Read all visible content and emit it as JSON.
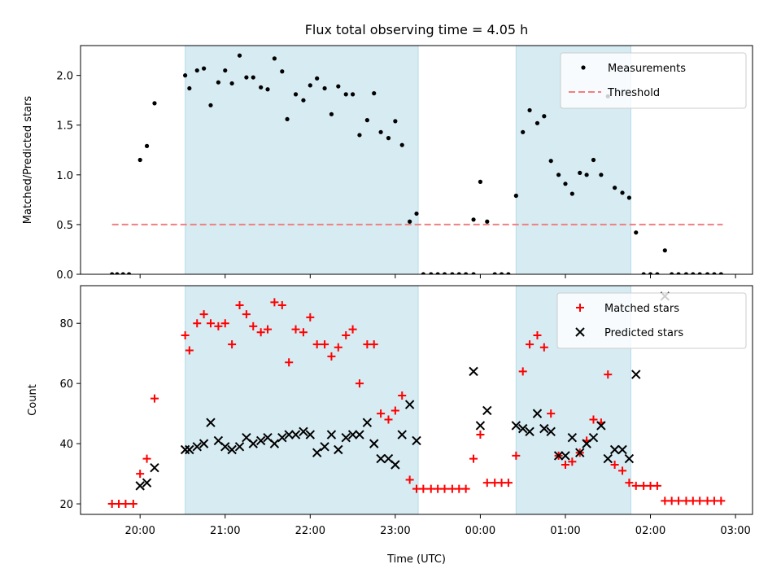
{
  "figure": {
    "title": "Flux total observing time = 4.05 h",
    "xlabel": "Time (UTC)",
    "xtick_labels": [
      "20:00",
      "21:00",
      "22:00",
      "23:00",
      "00:00",
      "01:00",
      "02:00",
      "03:00"
    ]
  },
  "chart_data": [
    {
      "type": "scatter",
      "ylabel": "Matched/Predicted stars",
      "ylim": [
        0,
        2.3
      ],
      "yticks": [
        0.0,
        0.5,
        1.0,
        1.5,
        2.0
      ],
      "ytick_labels": [
        "0.0",
        "0.5",
        "1.0",
        "1.5",
        "2.0"
      ],
      "x_unit": "hours since 20:00 UTC",
      "xlim": [
        -0.7,
        7.2
      ],
      "legend": {
        "position": "top-right",
        "entries": [
          "Measurements",
          "Threshold"
        ]
      },
      "shaded_regions": [
        {
          "x": [
            0.53,
            3.27
          ],
          "color": "#add8e6"
        },
        {
          "x": [
            4.42,
            5.77
          ],
          "color": "#add8e6"
        }
      ],
      "threshold": {
        "name": "Threshold",
        "y": 0.5,
        "x": [
          -0.33,
          6.85
        ],
        "color": "#f08080"
      },
      "series": [
        {
          "name": "Measurements",
          "color": "#000000",
          "points": [
            [
              -0.33,
              0
            ],
            [
              -0.27,
              0
            ],
            [
              -0.2,
              0
            ],
            [
              -0.13,
              0
            ],
            [
              0.0,
              1.15
            ],
            [
              0.08,
              1.29
            ],
            [
              0.17,
              1.72
            ],
            [
              0.53,
              2.0
            ],
            [
              0.58,
              1.87
            ],
            [
              0.67,
              2.05
            ],
            [
              0.75,
              2.07
            ],
            [
              0.83,
              1.7
            ],
            [
              0.92,
              1.93
            ],
            [
              1.0,
              2.05
            ],
            [
              1.08,
              1.92
            ],
            [
              1.17,
              2.2
            ],
            [
              1.25,
              1.98
            ],
            [
              1.33,
              1.98
            ],
            [
              1.42,
              1.88
            ],
            [
              1.5,
              1.86
            ],
            [
              1.58,
              2.17
            ],
            [
              1.67,
              2.04
            ],
            [
              1.73,
              1.56
            ],
            [
              1.83,
              1.81
            ],
            [
              1.92,
              1.75
            ],
            [
              2.0,
              1.9
            ],
            [
              2.08,
              1.97
            ],
            [
              2.17,
              1.87
            ],
            [
              2.25,
              1.61
            ],
            [
              2.33,
              1.89
            ],
            [
              2.42,
              1.81
            ],
            [
              2.5,
              1.81
            ],
            [
              2.58,
              1.4
            ],
            [
              2.67,
              1.55
            ],
            [
              2.75,
              1.82
            ],
            [
              2.83,
              1.43
            ],
            [
              2.92,
              1.37
            ],
            [
              3.0,
              1.54
            ],
            [
              3.08,
              1.3
            ],
            [
              3.17,
              0.53
            ],
            [
              3.25,
              0.61
            ],
            [
              3.33,
              0
            ],
            [
              3.42,
              0
            ],
            [
              3.5,
              0
            ],
            [
              3.58,
              0
            ],
            [
              3.67,
              0
            ],
            [
              3.75,
              0
            ],
            [
              3.83,
              0
            ],
            [
              3.92,
              0
            ],
            [
              3.92,
              0.55
            ],
            [
              4.0,
              0.93
            ],
            [
              4.08,
              0.53
            ],
            [
              4.17,
              0
            ],
            [
              4.25,
              0
            ],
            [
              4.33,
              0
            ],
            [
              4.42,
              0.79
            ],
            [
              4.5,
              1.43
            ],
            [
              4.58,
              1.65
            ],
            [
              4.67,
              1.52
            ],
            [
              4.75,
              1.59
            ],
            [
              4.83,
              1.14
            ],
            [
              4.92,
              1.0
            ],
            [
              5.0,
              0.91
            ],
            [
              5.08,
              0.81
            ],
            [
              5.17,
              1.02
            ],
            [
              5.25,
              1.0
            ],
            [
              5.33,
              1.15
            ],
            [
              5.42,
              1.0
            ],
            [
              5.5,
              1.79
            ],
            [
              5.58,
              0.87
            ],
            [
              5.67,
              0.82
            ],
            [
              5.75,
              0.77
            ],
            [
              5.83,
              0.42
            ],
            [
              5.92,
              0
            ],
            [
              6.0,
              0
            ],
            [
              6.08,
              0
            ],
            [
              6.17,
              0.24
            ],
            [
              6.25,
              0
            ],
            [
              6.33,
              0
            ],
            [
              6.42,
              0
            ],
            [
              6.5,
              0
            ],
            [
              6.58,
              0
            ],
            [
              6.67,
              0
            ],
            [
              6.75,
              0
            ],
            [
              6.83,
              0
            ]
          ]
        }
      ]
    },
    {
      "type": "scatter",
      "ylabel": "Count",
      "ylim": [
        16.5,
        92.5
      ],
      "yticks": [
        20,
        40,
        60,
        80
      ],
      "ytick_labels": [
        "20",
        "40",
        "60",
        "80"
      ],
      "x_unit": "hours since 20:00 UTC",
      "xlim": [
        -0.7,
        7.2
      ],
      "legend": {
        "position": "top-right",
        "entries": [
          "Matched stars",
          "Predicted stars"
        ]
      },
      "shaded_regions": [
        {
          "x": [
            0.53,
            3.27
          ],
          "color": "#add8e6"
        },
        {
          "x": [
            4.42,
            5.77
          ],
          "color": "#add8e6"
        }
      ],
      "series": [
        {
          "name": "Matched stars",
          "marker": "plus",
          "color": "#ff0000",
          "points": [
            [
              -0.33,
              20
            ],
            [
              -0.25,
              20
            ],
            [
              -0.17,
              20
            ],
            [
              -0.08,
              20
            ],
            [
              0.0,
              30
            ],
            [
              0.08,
              35
            ],
            [
              0.17,
              55
            ],
            [
              0.53,
              76
            ],
            [
              0.58,
              71
            ],
            [
              0.67,
              80
            ],
            [
              0.75,
              83
            ],
            [
              0.83,
              80
            ],
            [
              0.92,
              79
            ],
            [
              1.0,
              80
            ],
            [
              1.08,
              73
            ],
            [
              1.17,
              86
            ],
            [
              1.25,
              83
            ],
            [
              1.33,
              79
            ],
            [
              1.42,
              77
            ],
            [
              1.5,
              78
            ],
            [
              1.58,
              87
            ],
            [
              1.67,
              86
            ],
            [
              1.75,
              67
            ],
            [
              1.83,
              78
            ],
            [
              1.92,
              77
            ],
            [
              2.0,
              82
            ],
            [
              2.08,
              73
            ],
            [
              2.17,
              73
            ],
            [
              2.25,
              69
            ],
            [
              2.33,
              72
            ],
            [
              2.42,
              76
            ],
            [
              2.5,
              78
            ],
            [
              2.58,
              60
            ],
            [
              2.67,
              73
            ],
            [
              2.75,
              73
            ],
            [
              2.83,
              50
            ],
            [
              2.92,
              48
            ],
            [
              3.0,
              51
            ],
            [
              3.08,
              56
            ],
            [
              3.17,
              28
            ],
            [
              3.25,
              25
            ],
            [
              3.33,
              25
            ],
            [
              3.42,
              25
            ],
            [
              3.5,
              25
            ],
            [
              3.58,
              25
            ],
            [
              3.67,
              25
            ],
            [
              3.75,
              25
            ],
            [
              3.83,
              25
            ],
            [
              3.92,
              35
            ],
            [
              4.0,
              43
            ],
            [
              4.08,
              27
            ],
            [
              4.17,
              27
            ],
            [
              4.25,
              27
            ],
            [
              4.33,
              27
            ],
            [
              4.42,
              36
            ],
            [
              4.5,
              64
            ],
            [
              4.58,
              73
            ],
            [
              4.67,
              76
            ],
            [
              4.75,
              72
            ],
            [
              4.83,
              50
            ],
            [
              4.92,
              36
            ],
            [
              5.0,
              33
            ],
            [
              5.08,
              34
            ],
            [
              5.17,
              37
            ],
            [
              5.25,
              41
            ],
            [
              5.33,
              48
            ],
            [
              5.42,
              47
            ],
            [
              5.5,
              63
            ],
            [
              5.58,
              33
            ],
            [
              5.67,
              31
            ],
            [
              5.75,
              27
            ],
            [
              5.83,
              26
            ],
            [
              5.92,
              26
            ],
            [
              6.0,
              26
            ],
            [
              6.08,
              26
            ],
            [
              6.17,
              21
            ],
            [
              6.25,
              21
            ],
            [
              6.33,
              21
            ],
            [
              6.42,
              21
            ],
            [
              6.5,
              21
            ],
            [
              6.58,
              21
            ],
            [
              6.67,
              21
            ],
            [
              6.75,
              21
            ],
            [
              6.83,
              21
            ]
          ]
        },
        {
          "name": "Predicted stars",
          "marker": "x",
          "color": "#000000",
          "points": [
            [
              0.0,
              26
            ],
            [
              0.08,
              27
            ],
            [
              0.17,
              32
            ],
            [
              0.53,
              38
            ],
            [
              0.58,
              38
            ],
            [
              0.67,
              39
            ],
            [
              0.75,
              40
            ],
            [
              0.83,
              47
            ],
            [
              0.92,
              41
            ],
            [
              1.0,
              39
            ],
            [
              1.08,
              38
            ],
            [
              1.17,
              39
            ],
            [
              1.25,
              42
            ],
            [
              1.33,
              40
            ],
            [
              1.42,
              41
            ],
            [
              1.5,
              42
            ],
            [
              1.58,
              40
            ],
            [
              1.67,
              42
            ],
            [
              1.75,
              43
            ],
            [
              1.83,
              43
            ],
            [
              1.92,
              44
            ],
            [
              2.0,
              43
            ],
            [
              2.08,
              37
            ],
            [
              2.17,
              39
            ],
            [
              2.25,
              43
            ],
            [
              2.33,
              38
            ],
            [
              2.42,
              42
            ],
            [
              2.5,
              43
            ],
            [
              2.58,
              43
            ],
            [
              2.67,
              47
            ],
            [
              2.75,
              40
            ],
            [
              2.83,
              35
            ],
            [
              2.92,
              35
            ],
            [
              3.0,
              33
            ],
            [
              3.08,
              43
            ],
            [
              3.17,
              53
            ],
            [
              3.25,
              41
            ],
            [
              3.92,
              64
            ],
            [
              4.0,
              46
            ],
            [
              4.08,
              51
            ],
            [
              4.42,
              46
            ],
            [
              4.5,
              45
            ],
            [
              4.58,
              44
            ],
            [
              4.67,
              50
            ],
            [
              4.75,
              45
            ],
            [
              4.83,
              44
            ],
            [
              4.92,
              36
            ],
            [
              5.0,
              36
            ],
            [
              5.08,
              42
            ],
            [
              5.17,
              37
            ],
            [
              5.25,
              40
            ],
            [
              5.33,
              42
            ],
            [
              5.42,
              46
            ],
            [
              5.5,
              35
            ],
            [
              5.58,
              38
            ],
            [
              5.67,
              38
            ],
            [
              5.75,
              35
            ],
            [
              5.83,
              63
            ],
            [
              6.17,
              89
            ]
          ]
        }
      ]
    }
  ]
}
